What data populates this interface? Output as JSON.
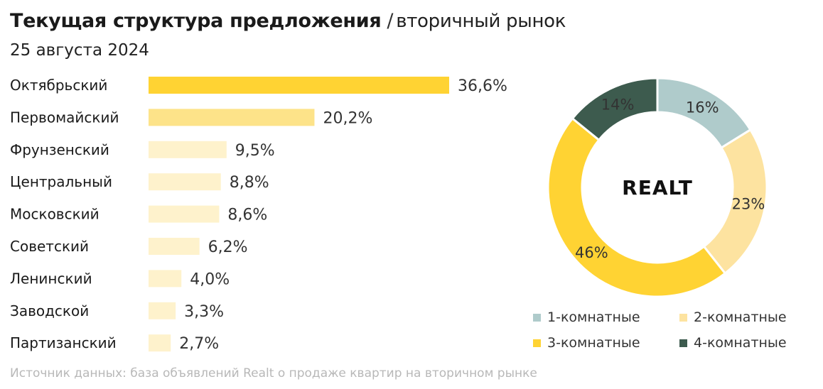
{
  "header": {
    "title": "Текущая структура предложения",
    "separator": "/",
    "title_sub": "вторичный рынок",
    "date": "25 августа 2024"
  },
  "footer": {
    "source": "Источник данных: база объявлений Realt о продаже квартир на вторичном рынке"
  },
  "logo": {
    "text": "REALT"
  },
  "colors": {
    "bar_top": "#ffd333",
    "bar_second": "#fde389",
    "bar_rest": "#fef2cc",
    "slice_1": "#afcbcb",
    "slice_2": "#fde3a0",
    "slice_3": "#ffd333",
    "slice_4": "#3d5b4e"
  },
  "chart_data": [
    {
      "type": "bar",
      "orientation": "horizontal",
      "categories": [
        "Октябрьский",
        "Первомайский",
        "Фрунзенский",
        "Центральный",
        "Московский",
        "Советский",
        "Ленинский",
        "Заводской",
        "Партизанский"
      ],
      "values": [
        36.6,
        20.2,
        9.5,
        8.8,
        8.6,
        6.2,
        4.0,
        3.3,
        2.7
      ],
      "value_labels": [
        "36,6%",
        "20,2%",
        "9,5%",
        "8,8%",
        "8,6%",
        "6,2%",
        "4,0%",
        "3,3%",
        "2,7%"
      ],
      "unit": "%"
    },
    {
      "type": "pie",
      "variant": "donut",
      "labels": [
        "1-комнатные",
        "2-комнатные",
        "3-комнатные",
        "4-комнатные"
      ],
      "values": [
        16,
        23,
        46,
        14
      ],
      "value_labels": [
        "16%",
        "23%",
        "46%",
        "14%"
      ],
      "start_angle_deg": 0,
      "legend": "bottom"
    }
  ]
}
